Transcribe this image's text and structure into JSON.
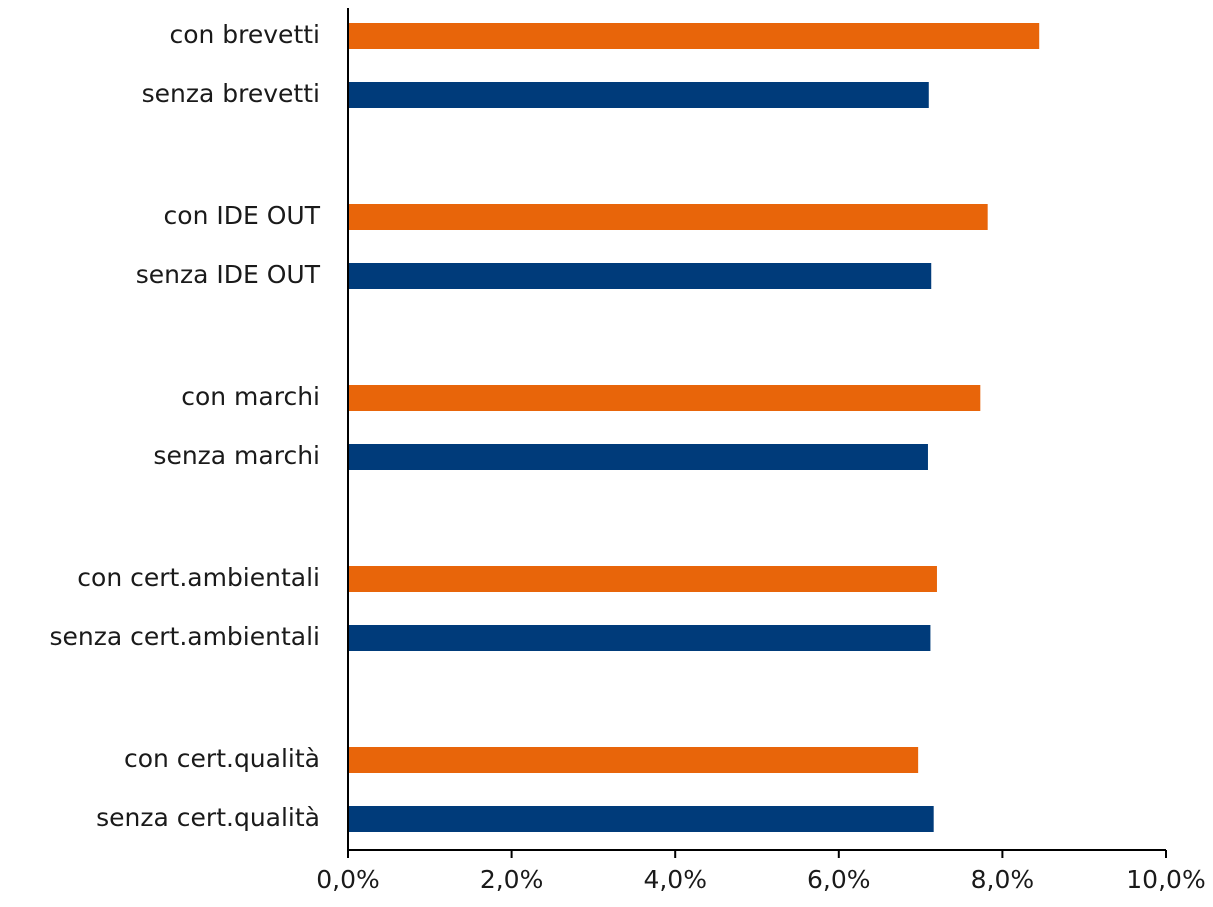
{
  "chart_data": {
    "type": "bar",
    "orientation": "horizontal",
    "categories": [
      "con brevetti",
      "senza brevetti",
      "con IDE OUT",
      "senza IDE OUT",
      "con marchi",
      "senza marchi",
      "con cert.ambientali",
      "senza cert.ambientali",
      "con cert.qualità",
      "senza cert.qualità"
    ],
    "values": [
      8.45,
      7.1,
      7.82,
      7.13,
      7.73,
      7.09,
      7.2,
      7.12,
      6.97,
      7.16
    ],
    "bar_groups": [
      "con",
      "senza",
      "con",
      "senza",
      "con",
      "senza",
      "con",
      "senza",
      "con",
      "senza"
    ],
    "xlim": [
      0,
      10
    ],
    "xticks": [
      0,
      2,
      4,
      6,
      8,
      10
    ],
    "xtick_labels": [
      "0,0%",
      "2,0%",
      "4,0%",
      "6,0%",
      "8,0%",
      "10,0%"
    ],
    "title": "",
    "xlabel": "",
    "ylabel": "",
    "grid": false,
    "legend": "none",
    "colors": {
      "con": "#E8650A",
      "senza": "#003B7A",
      "axis": "#000000"
    }
  }
}
